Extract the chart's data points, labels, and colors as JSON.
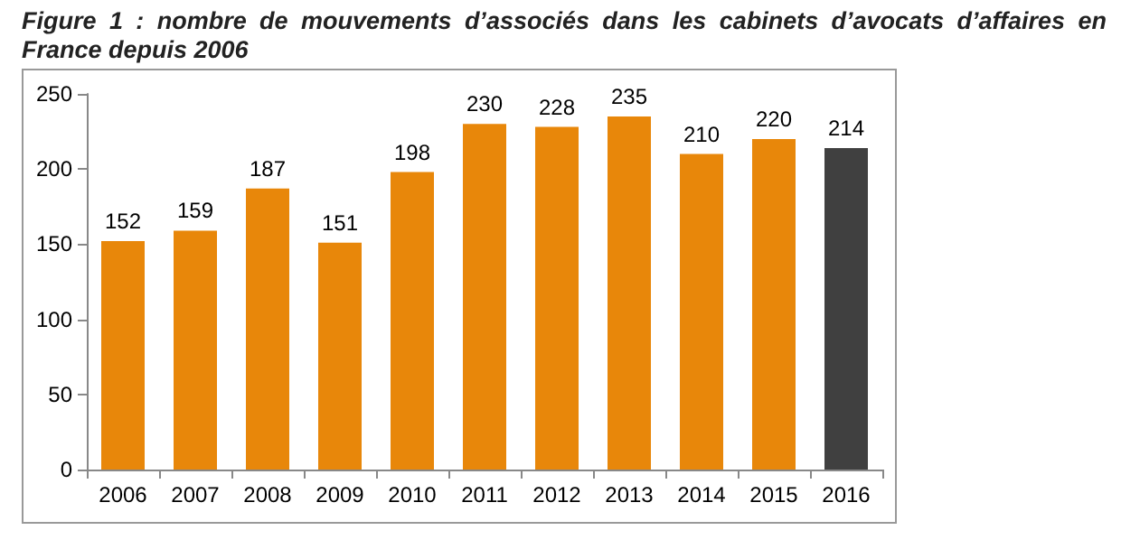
{
  "chart_data": {
    "type": "bar",
    "title": "Figure 1 : nombre de mouvements d’associés dans les cabinets d’avocats d’affaires en France depuis 2006",
    "categories": [
      "2006",
      "2007",
      "2008",
      "2009",
      "2010",
      "2011",
      "2012",
      "2013",
      "2014",
      "2015",
      "2016"
    ],
    "values": [
      152,
      159,
      187,
      151,
      198,
      230,
      228,
      235,
      210,
      220,
      214
    ],
    "colors": [
      "#e8870a",
      "#e8870a",
      "#e8870a",
      "#e8870a",
      "#e8870a",
      "#e8870a",
      "#e8870a",
      "#e8870a",
      "#e8870a",
      "#e8870a",
      "#404040"
    ],
    "ylim": [
      0,
      250
    ],
    "yticks": [
      0,
      50,
      100,
      150,
      200,
      250
    ],
    "data_labels": true,
    "grid": false
  }
}
